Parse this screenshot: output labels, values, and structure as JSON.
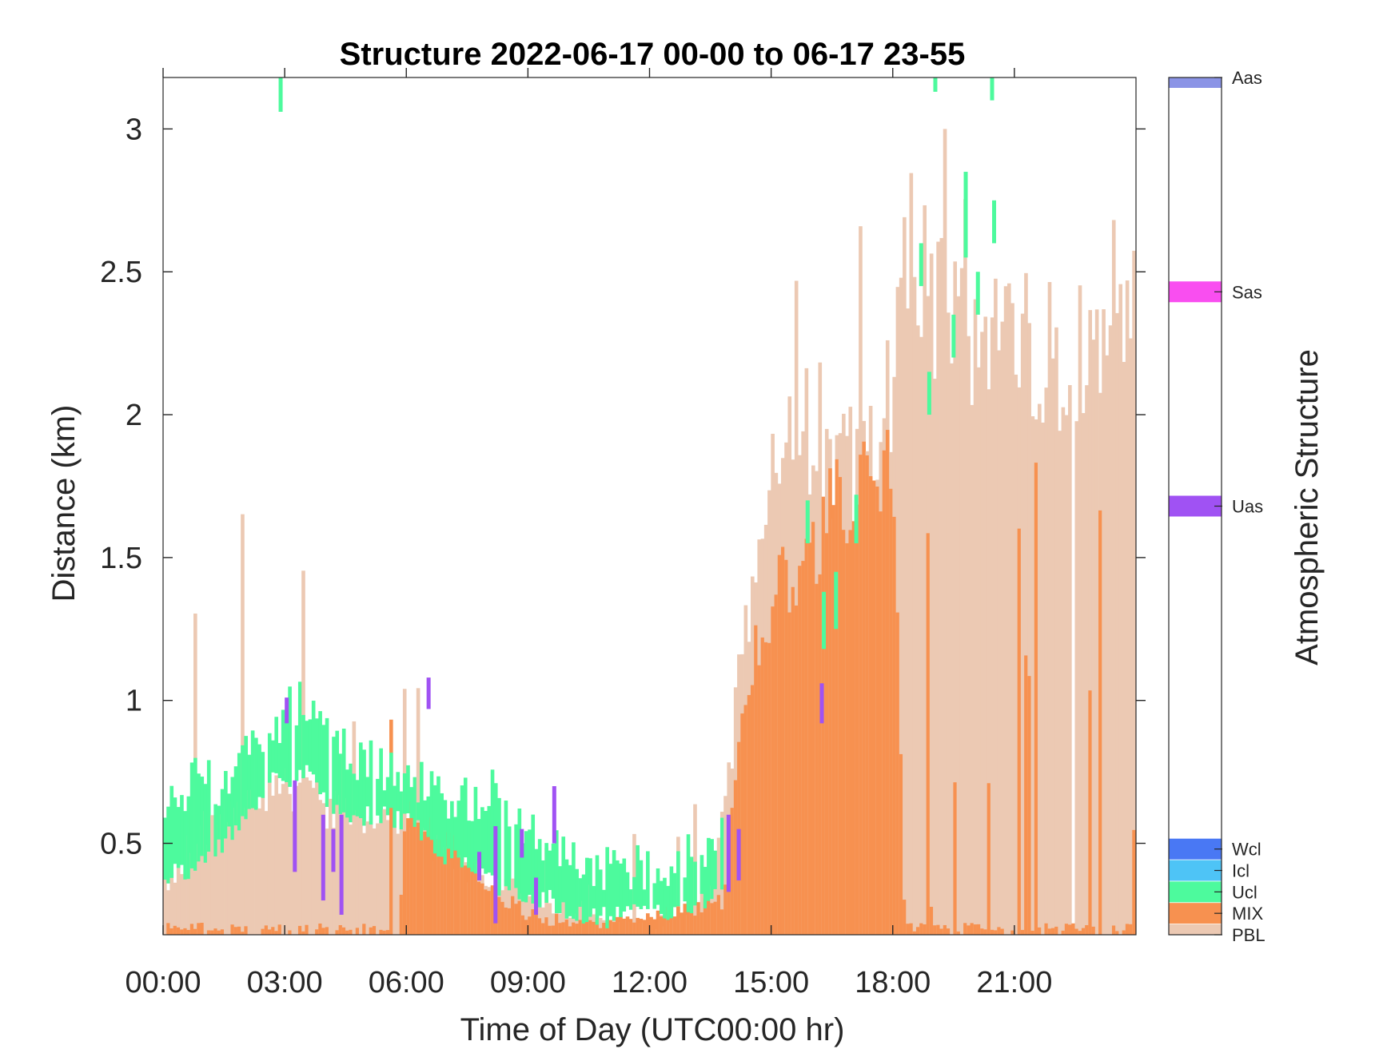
{
  "chart_data": {
    "type": "bar",
    "title": "Structure 2022-06-17 00-00 to 06-17 23-55",
    "xlabel": "Time of Day (UTC00:00 hr)",
    "ylabel": "Distance (km)",
    "xlim": [
      0,
      24
    ],
    "ylim": [
      0.18,
      3.18
    ],
    "x_ticks": [
      {
        "value": 0,
        "label": "00:00"
      },
      {
        "value": 3,
        "label": "03:00"
      },
      {
        "value": 6,
        "label": "06:00"
      },
      {
        "value": 9,
        "label": "09:00"
      },
      {
        "value": 12,
        "label": "12:00"
      },
      {
        "value": 15,
        "label": "15:00"
      },
      {
        "value": 18,
        "label": "18:00"
      },
      {
        "value": 21,
        "label": "21:00"
      }
    ],
    "y_ticks": [
      {
        "value": 0.5,
        "label": "0.5"
      },
      {
        "value": 1,
        "label": "1"
      },
      {
        "value": 1.5,
        "label": "1.5"
      },
      {
        "value": 2,
        "label": "2"
      },
      {
        "value": 2.5,
        "label": "2.5"
      },
      {
        "value": 3,
        "label": "3"
      }
    ],
    "grid": false,
    "bin_width_hours": 0.0833,
    "colors": {
      "PBL": "#ecc9b3",
      "MIX": "#f79150",
      "Ucl": "#4dfa9d",
      "Icl": "#4ec4f6",
      "Wcl": "#4978f4",
      "Uas": "#a052f3",
      "Sas": "#f94ef0",
      "Aas": "#8b94e6"
    },
    "colorbar": {
      "label": "Atmospheric Structure",
      "categories": [
        {
          "name": "Aas",
          "color": "#8b94e6"
        },
        {
          "name": "Sas",
          "color": "#f94ef0"
        },
        {
          "name": "Uas",
          "color": "#a052f3"
        },
        {
          "name": "Wcl",
          "color": "#4978f4"
        },
        {
          "name": "Icl",
          "color": "#4ec4f6"
        },
        {
          "name": "Ucl",
          "color": "#4dfa9d"
        },
        {
          "name": "MIX",
          "color": "#f79150"
        },
        {
          "name": "PBL",
          "color": "#ecc9b3"
        }
      ]
    },
    "pbl_top_knots": [
      [
        0,
        0.35
      ],
      [
        0.5,
        0.45
      ],
      [
        1,
        0.55
      ],
      [
        1.5,
        0.6
      ],
      [
        2,
        0.68
      ],
      [
        2.5,
        0.7
      ],
      [
        3,
        0.68
      ],
      [
        3.5,
        0.72
      ],
      [
        4,
        0.62
      ],
      [
        5,
        0.6
      ],
      [
        6,
        0.55
      ],
      [
        7,
        0.45
      ],
      [
        8,
        0.38
      ],
      [
        9,
        0.32
      ],
      [
        10,
        0.27
      ],
      [
        11,
        0.22
      ],
      [
        12,
        0.22
      ],
      [
        13,
        0.24
      ],
      [
        13.6,
        0.35
      ],
      [
        14,
        0.8
      ],
      [
        14.5,
        1.4
      ],
      [
        15,
        1.8
      ],
      [
        15.5,
        2.05
      ],
      [
        16,
        1.9
      ],
      [
        17,
        1.75
      ],
      [
        18,
        2.05
      ],
      [
        18.5,
        2.6
      ],
      [
        19,
        2.4
      ],
      [
        20,
        2.3
      ],
      [
        21,
        2.25
      ],
      [
        22,
        2.05
      ],
      [
        23,
        2.35
      ],
      [
        24,
        2.45
      ]
    ],
    "mix_top_knots": [
      [
        0,
        0.2
      ],
      [
        2.3,
        0.2
      ],
      [
        5.8,
        0.2
      ],
      [
        6,
        0.6
      ],
      [
        6.5,
        0.58
      ],
      [
        7,
        0.5
      ],
      [
        7.5,
        0.45
      ],
      [
        8,
        0.35
      ],
      [
        8.5,
        0.3
      ],
      [
        9,
        0.25
      ],
      [
        10,
        0.22
      ],
      [
        11,
        0.22
      ],
      [
        12,
        0.25
      ],
      [
        13,
        0.27
      ],
      [
        13.8,
        0.3
      ],
      [
        14.1,
        0.7
      ],
      [
        14.5,
        1.1
      ],
      [
        15,
        1.3
      ],
      [
        15.5,
        1.45
      ],
      [
        16,
        1.55
      ],
      [
        16.5,
        1.65
      ],
      [
        17,
        1.7
      ],
      [
        17.5,
        1.75
      ],
      [
        18,
        1.95
      ],
      [
        18.3,
        0.2
      ],
      [
        24,
        0.2
      ]
    ],
    "cloud_knots": [
      [
        0,
        0.38,
        0.55
      ],
      [
        0.5,
        0.4,
        0.7
      ],
      [
        1,
        0.43,
        0.72
      ],
      [
        1.5,
        0.5,
        0.72
      ],
      [
        2,
        0.58,
        0.8
      ],
      [
        2.5,
        0.7,
        0.88
      ],
      [
        3,
        0.72,
        0.95
      ],
      [
        3.5,
        0.75,
        1.0
      ],
      [
        4,
        0.65,
        0.92
      ],
      [
        4.5,
        0.6,
        0.85
      ],
      [
        5,
        0.6,
        0.78
      ],
      [
        5.5,
        0.6,
        0.75
      ],
      [
        6,
        0.58,
        0.72
      ],
      [
        6.5,
        0.52,
        0.7
      ],
      [
        7,
        0.46,
        0.66
      ],
      [
        7.5,
        0.42,
        0.64
      ],
      [
        8,
        0.37,
        0.7
      ],
      [
        8.5,
        0.33,
        0.62
      ],
      [
        9,
        0.32,
        0.55
      ],
      [
        9.5,
        0.3,
        0.5
      ],
      [
        10,
        0.27,
        0.45
      ],
      [
        10.5,
        0.25,
        0.42
      ],
      [
        11,
        0.24,
        0.42
      ],
      [
        11.5,
        0.26,
        0.42
      ],
      [
        12,
        0.25,
        0.42
      ],
      [
        12.5,
        0.25,
        0.42
      ],
      [
        13,
        0.27,
        0.45
      ],
      [
        13.5,
        0.3,
        0.5
      ],
      [
        13.8,
        0.34,
        0.52
      ]
    ],
    "isolated_segments": [
      {
        "class": "Ucl",
        "x": 2.9,
        "y0": 3.06,
        "y1": 3.18
      },
      {
        "class": "Ucl",
        "x": 19.05,
        "y0": 3.13,
        "y1": 3.18
      },
      {
        "class": "Ucl",
        "x": 20.45,
        "y0": 3.1,
        "y1": 3.18
      },
      {
        "class": "Ucl",
        "x": 15.9,
        "y0": 1.55,
        "y1": 1.7
      },
      {
        "class": "Ucl",
        "x": 16.3,
        "y0": 1.18,
        "y1": 1.38
      },
      {
        "class": "Ucl",
        "x": 16.6,
        "y0": 1.25,
        "y1": 1.45
      },
      {
        "class": "Ucl",
        "x": 17.1,
        "y0": 1.55,
        "y1": 1.72
      },
      {
        "class": "Ucl",
        "x": 18.7,
        "y0": 2.45,
        "y1": 2.6
      },
      {
        "class": "Ucl",
        "x": 18.9,
        "y0": 2.0,
        "y1": 2.15
      },
      {
        "class": "Ucl",
        "x": 19.5,
        "y0": 2.2,
        "y1": 2.35
      },
      {
        "class": "Ucl",
        "x": 19.8,
        "y0": 2.55,
        "y1": 2.85
      },
      {
        "class": "Ucl",
        "x": 20.1,
        "y0": 2.35,
        "y1": 2.5
      },
      {
        "class": "Ucl",
        "x": 20.5,
        "y0": 2.6,
        "y1": 2.75
      },
      {
        "class": "Uas",
        "x": 3.05,
        "y0": 0.92,
        "y1": 1.01
      },
      {
        "class": "Uas",
        "x": 3.25,
        "y0": 0.4,
        "y1": 0.72
      },
      {
        "class": "Uas",
        "x": 3.95,
        "y0": 0.3,
        "y1": 0.6
      },
      {
        "class": "Uas",
        "x": 4.2,
        "y0": 0.4,
        "y1": 0.55
      },
      {
        "class": "Uas",
        "x": 4.4,
        "y0": 0.25,
        "y1": 0.6
      },
      {
        "class": "Uas",
        "x": 6.55,
        "y0": 0.97,
        "y1": 1.08
      },
      {
        "class": "Uas",
        "x": 7.8,
        "y0": 0.37,
        "y1": 0.47
      },
      {
        "class": "Uas",
        "x": 8.2,
        "y0": 0.22,
        "y1": 0.56
      },
      {
        "class": "Uas",
        "x": 8.85,
        "y0": 0.45,
        "y1": 0.55
      },
      {
        "class": "Uas",
        "x": 9.2,
        "y0": 0.25,
        "y1": 0.38
      },
      {
        "class": "Uas",
        "x": 9.65,
        "y0": 0.5,
        "y1": 0.7
      },
      {
        "class": "Uas",
        "x": 13.95,
        "y0": 0.33,
        "y1": 0.6
      },
      {
        "class": "Uas",
        "x": 14.2,
        "y0": 0.37,
        "y1": 0.55
      },
      {
        "class": "Uas",
        "x": 16.25,
        "y0": 0.92,
        "y1": 1.06
      }
    ]
  }
}
